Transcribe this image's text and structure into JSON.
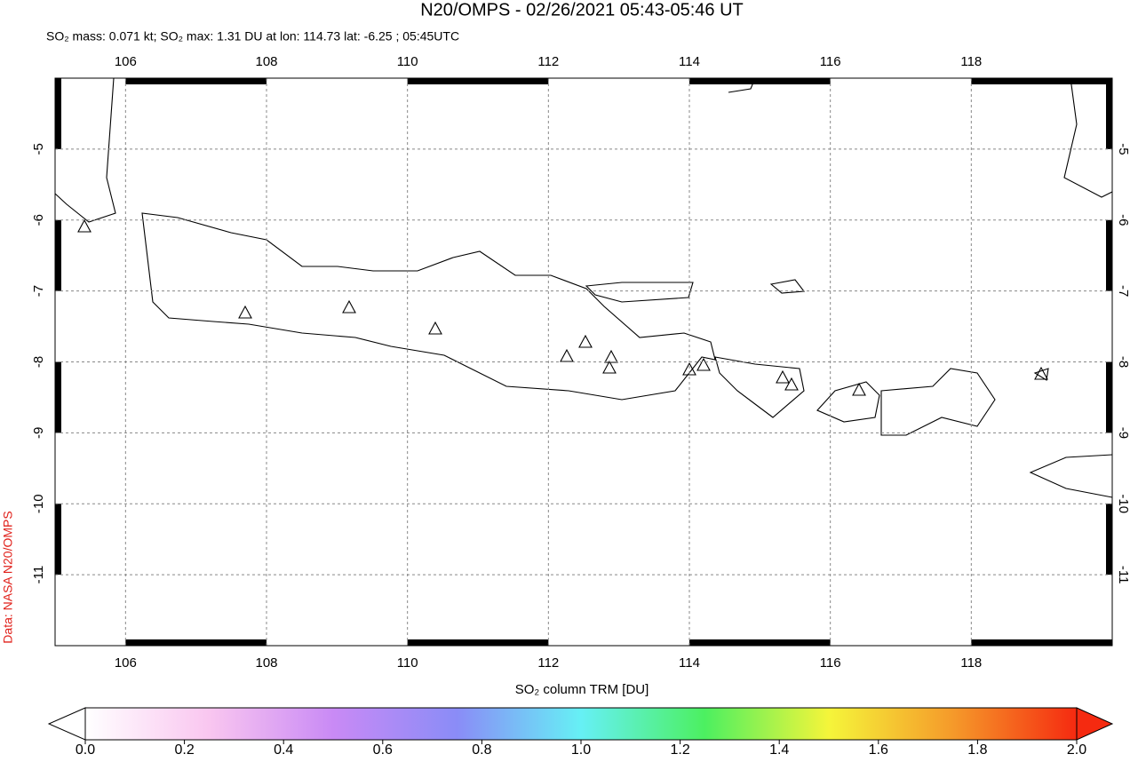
{
  "chart_data": {
    "type": "map",
    "title": "N20/OMPS - 02/26/2021 05:43-05:46 UT",
    "subtitle": "SO₂ mass: 0.071 kt; SO₂ max: 1.31 DU at lon: 114.73 lat: -6.25 ; 05:45UTC",
    "credit": "Data: NASA N20/OMPS",
    "xlim": [
      105,
      120
    ],
    "ylim": [
      -12,
      -4
    ],
    "xticks": [
      106,
      108,
      110,
      112,
      114,
      116,
      118
    ],
    "yticks": [
      -5,
      -6,
      -7,
      -8,
      -9,
      -10,
      -11
    ],
    "grid": true,
    "colorbar": {
      "label": "SO₂ column TRM [DU]",
      "lim": [
        0,
        2
      ],
      "ticks": [
        {
          "value": 0,
          "label": "0.0"
        },
        {
          "value": 0.2,
          "label": "0.2"
        },
        {
          "value": 0.4,
          "label": "0.4"
        },
        {
          "value": 0.6,
          "label": "0.6"
        },
        {
          "value": 0.8,
          "label": "0.8"
        },
        {
          "value": 1,
          "label": "1.0"
        },
        {
          "value": 1.2,
          "label": "1.2"
        },
        {
          "value": 1.4,
          "label": "1.4"
        },
        {
          "value": 1.6,
          "label": "1.6"
        },
        {
          "value": 1.8,
          "label": "1.8"
        },
        {
          "value": 2,
          "label": "2.0"
        }
      ],
      "colors": [
        "#ffffff",
        "#f9c6f0",
        "#c98af5",
        "#8a8cf7",
        "#66f0f5",
        "#4cf060",
        "#f5f53a",
        "#f59a2a",
        "#f52a10"
      ]
    }
  }
}
